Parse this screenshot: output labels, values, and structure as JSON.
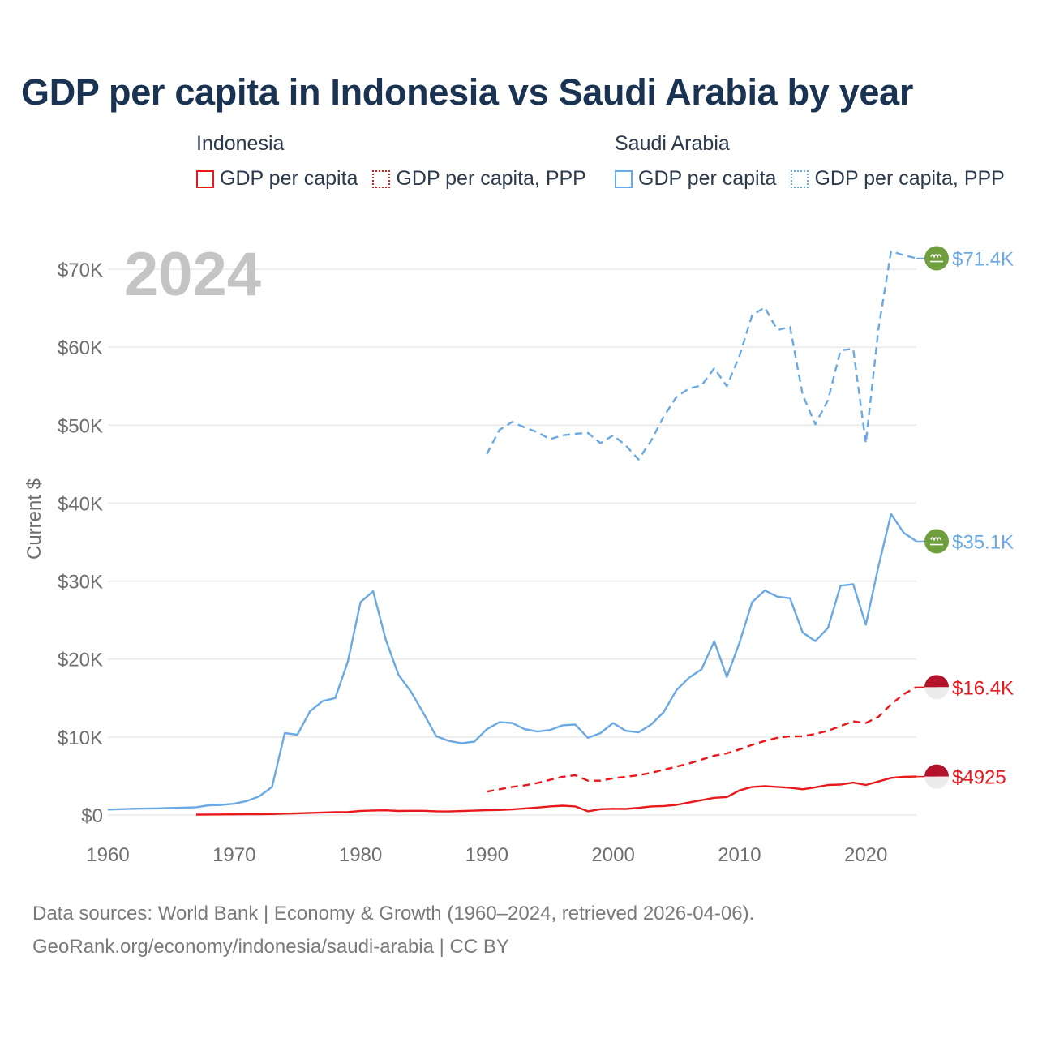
{
  "title": "GDP per capita in Indonesia vs Saudi Arabia by year",
  "legend": {
    "groups": [
      {
        "country": "Indonesia",
        "items": [
          {
            "label": "GDP per capita",
            "style": "solid",
            "color": "#e8191c"
          },
          {
            "label": "GDP per capita, PPP",
            "style": "dotted",
            "color": "#e8191c"
          }
        ]
      },
      {
        "country": "Saudi Arabia",
        "items": [
          {
            "label": "GDP per capita",
            "style": "solid",
            "color": "#6aa9e3"
          },
          {
            "label": "GDP per capita, PPP",
            "style": "dotted",
            "color": "#6aa9e3"
          }
        ]
      }
    ]
  },
  "year_label": "2024",
  "source_lines": [
    "Data sources: World Bank | Economy & Growth (1960–2024, retrieved 2026-04-06).",
    "GeoRank.org/economy/indonesia/saudi-arabia | CC BY"
  ],
  "colors": {
    "indonesia": "#e8191c",
    "saudi": "#6aa9e3",
    "title": "#1a3352",
    "axis_text": "#6e6e6e",
    "grid": "#e9e9e9",
    "year_watermark": "#c4c4c4"
  },
  "chart_data": {
    "type": "line",
    "ylabel": "Current $",
    "xlim": [
      1960,
      2024
    ],
    "ylim": [
      0,
      70000
    ],
    "x_ticks": [
      "1960",
      "1970",
      "1980",
      "1990",
      "2000",
      "2010",
      "2020"
    ],
    "x_tick_values": [
      1960,
      1970,
      1980,
      1990,
      2000,
      2010,
      2020
    ],
    "y_ticks": [
      "$0",
      "$10K",
      "$20K",
      "$30K",
      "$40K",
      "$50K",
      "$60K",
      "$70K"
    ],
    "y_tick_values": [
      0,
      10000,
      20000,
      30000,
      40000,
      50000,
      60000,
      70000
    ],
    "series": [
      {
        "name": "Saudi Arabia — GDP per capita, PPP",
        "country": "Saudi Arabia",
        "color": "#6aa9e3",
        "dash": "dashed",
        "end_label": "$71.4K",
        "flag": "saudi",
        "x": [
          1990,
          1991,
          1992,
          1993,
          1994,
          1995,
          1996,
          1997,
          1998,
          1999,
          2000,
          2001,
          2002,
          2003,
          2004,
          2005,
          2006,
          2007,
          2008,
          2009,
          2010,
          2011,
          2012,
          2013,
          2014,
          2015,
          2016,
          2017,
          2018,
          2019,
          2020,
          2021,
          2022,
          2023,
          2024
        ],
        "values": [
          46300,
          49400,
          50400,
          49700,
          49100,
          48200,
          48700,
          48900,
          49000,
          47700,
          48700,
          47400,
          45600,
          48000,
          51100,
          53600,
          54700,
          55100,
          57300,
          55000,
          58900,
          64100,
          65100,
          62200,
          62600,
          53900,
          50100,
          53200,
          59600,
          59800,
          47700,
          62400,
          72300,
          71800,
          71400
        ]
      },
      {
        "name": "Saudi Arabia — GDP per capita",
        "country": "Saudi Arabia",
        "color": "#6aa9e3",
        "dash": "solid",
        "end_label": "$35.1K",
        "flag": "saudi",
        "x": [
          1960,
          1961,
          1962,
          1963,
          1964,
          1965,
          1966,
          1967,
          1968,
          1969,
          1970,
          1971,
          1972,
          1973,
          1974,
          1975,
          1976,
          1977,
          1978,
          1979,
          1980,
          1981,
          1982,
          1983,
          1984,
          1985,
          1986,
          1987,
          1988,
          1989,
          1990,
          1991,
          1992,
          1993,
          1994,
          1995,
          1996,
          1997,
          1998,
          1999,
          2000,
          2001,
          2002,
          2003,
          2004,
          2005,
          2006,
          2007,
          2008,
          2009,
          2010,
          2011,
          2012,
          2013,
          2014,
          2015,
          2016,
          2017,
          2018,
          2019,
          2020,
          2021,
          2022,
          2023,
          2024
        ],
        "values": [
          700,
          750,
          800,
          820,
          850,
          900,
          950,
          1000,
          1250,
          1300,
          1450,
          1800,
          2400,
          3600,
          10500,
          10300,
          13300,
          14600,
          15000,
          19700,
          27300,
          28700,
          22500,
          18000,
          15800,
          13000,
          10100,
          9500,
          9200,
          9400,
          11000,
          11900,
          11800,
          11000,
          10700,
          10900,
          11500,
          11600,
          9900,
          10500,
          11800,
          10800,
          10600,
          11600,
          13200,
          16000,
          17600,
          18700,
          22300,
          17700,
          22100,
          27300,
          28800,
          28000,
          27800,
          23400,
          22300,
          24000,
          29400,
          29600,
          24400,
          31900,
          38600,
          36200,
          35100
        ]
      },
      {
        "name": "Indonesia — GDP per capita, PPP",
        "country": "Indonesia",
        "color": "#e8191c",
        "dash": "dashed",
        "end_label": "$16.4K",
        "flag": "indonesia",
        "x": [
          1990,
          1991,
          1992,
          1993,
          1994,
          1995,
          1996,
          1997,
          1998,
          1999,
          2000,
          2001,
          2002,
          2003,
          2004,
          2005,
          2006,
          2007,
          2008,
          2009,
          2010,
          2011,
          2012,
          2013,
          2014,
          2015,
          2016,
          2017,
          2018,
          2019,
          2020,
          2021,
          2022,
          2023,
          2024
        ],
        "values": [
          3000,
          3300,
          3600,
          3800,
          4100,
          4500,
          4900,
          5100,
          4400,
          4400,
          4700,
          4900,
          5100,
          5400,
          5800,
          6200,
          6600,
          7100,
          7600,
          7900,
          8400,
          9000,
          9500,
          9900,
          10100,
          10100,
          10400,
          10800,
          11400,
          12000,
          11800,
          12600,
          14200,
          15500,
          16400
        ]
      },
      {
        "name": "Indonesia — GDP per capita",
        "country": "Indonesia",
        "color": "#e8191c",
        "dash": "solid",
        "end_label": "$4925",
        "flag": "indonesia",
        "x": [
          1967,
          1968,
          1969,
          1970,
          1971,
          1972,
          1973,
          1974,
          1975,
          1976,
          1977,
          1978,
          1979,
          1980,
          1981,
          1982,
          1983,
          1984,
          1985,
          1986,
          1987,
          1988,
          1989,
          1990,
          1991,
          1992,
          1993,
          1994,
          1995,
          1996,
          1997,
          1998,
          1999,
          2000,
          2001,
          2002,
          2003,
          2004,
          2005,
          2006,
          2007,
          2008,
          2009,
          2010,
          2011,
          2012,
          2013,
          2014,
          2015,
          2016,
          2017,
          2018,
          2019,
          2020,
          2021,
          2022,
          2023,
          2024
        ],
        "values": [
          55,
          65,
          75,
          85,
          90,
          95,
          120,
          180,
          220,
          270,
          320,
          360,
          380,
          530,
          580,
          600,
          520,
          540,
          540,
          480,
          460,
          510,
          560,
          620,
          650,
          720,
          840,
          960,
          1100,
          1200,
          1100,
          480,
          750,
          800,
          780,
          920,
          1100,
          1150,
          1300,
          1600,
          1900,
          2200,
          2300,
          3150,
          3600,
          3700,
          3600,
          3500,
          3300,
          3550,
          3850,
          3900,
          4150,
          3850,
          4300,
          4750,
          4900,
          4925
        ]
      }
    ]
  }
}
